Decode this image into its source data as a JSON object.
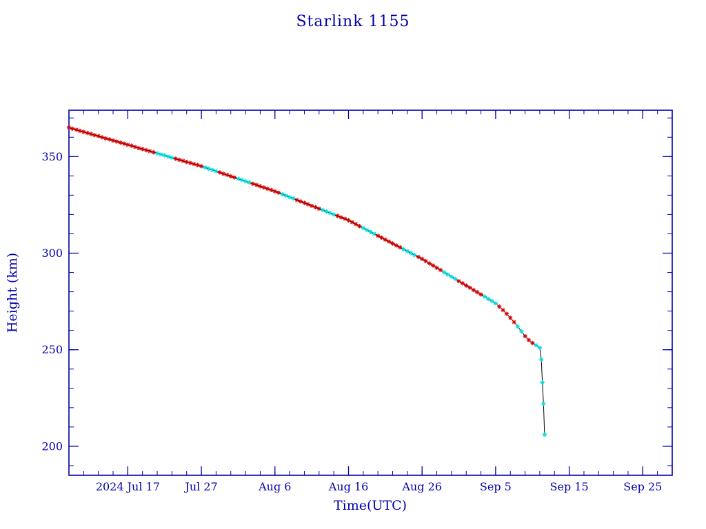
{
  "chart_data": {
    "type": "line",
    "title": "Starlink 1155",
    "xlabel": "Time(UTC)",
    "ylabel": "Height (km)",
    "x_axis": {
      "unit": "day of 2024, Jul 1 = 1",
      "range": [
        9,
        91
      ],
      "major_ticks": [
        {
          "day": 17,
          "label": "2024 Jul 17"
        },
        {
          "day": 27,
          "label": "Jul 27"
        },
        {
          "day": 37,
          "label": "Aug 6"
        },
        {
          "day": 47,
          "label": "Aug 16"
        },
        {
          "day": 57,
          "label": "Aug 26"
        },
        {
          "day": 67,
          "label": "Sep 5"
        },
        {
          "day": 77,
          "label": "Sep 15"
        },
        {
          "day": 87,
          "label": "Sep 25"
        }
      ],
      "minor_step": 2
    },
    "y_axis": {
      "unit": "km",
      "range": [
        185,
        374
      ],
      "major_ticks": [
        200,
        250,
        300,
        350
      ],
      "minor_step": 10
    },
    "grid": false,
    "legend": "none",
    "line_color": "#000000",
    "frame_color": "#0000aa",
    "marker_colors": {
      "r": "#d40000",
      "c": "#00dde0"
    },
    "points": [
      [
        9,
        365,
        "r"
      ],
      [
        9.5,
        364.4,
        "r"
      ],
      [
        10,
        363.9,
        "r"
      ],
      [
        10.5,
        363.3,
        "r"
      ],
      [
        11,
        362.8,
        "r"
      ],
      [
        11.5,
        362.2,
        "r"
      ],
      [
        12,
        361.7,
        "r"
      ],
      [
        12.5,
        361.1,
        "r"
      ],
      [
        13,
        360.6,
        "r"
      ],
      [
        13.5,
        360,
        "r"
      ],
      [
        14,
        359.4,
        "r"
      ],
      [
        14.5,
        358.9,
        "r"
      ],
      [
        15,
        358.3,
        "r"
      ],
      [
        15.5,
        357.8,
        "r"
      ],
      [
        16,
        357.2,
        "r"
      ],
      [
        16.5,
        356.7,
        "r"
      ],
      [
        17,
        356.1,
        "r"
      ],
      [
        17.5,
        355.6,
        "r"
      ],
      [
        18,
        355,
        "r"
      ],
      [
        18.5,
        354.4,
        "r"
      ],
      [
        19,
        353.9,
        "r"
      ],
      [
        19.5,
        353.3,
        "r"
      ],
      [
        20,
        352.8,
        "r"
      ],
      [
        20.5,
        352.2,
        "r"
      ],
      [
        21,
        351.7,
        "c"
      ],
      [
        21.5,
        351.1,
        "c"
      ],
      [
        22,
        350.6,
        "c"
      ],
      [
        22.5,
        350,
        "c"
      ],
      [
        23,
        349.4,
        "c"
      ],
      [
        23.5,
        348.9,
        "r"
      ],
      [
        24,
        348.3,
        "r"
      ],
      [
        24.5,
        347.8,
        "r"
      ],
      [
        25,
        347.2,
        "r"
      ],
      [
        25.5,
        346.7,
        "r"
      ],
      [
        26,
        346.1,
        "r"
      ],
      [
        26.5,
        345.6,
        "r"
      ],
      [
        27,
        345,
        "r"
      ],
      [
        27.5,
        344.4,
        "c"
      ],
      [
        28,
        343.7,
        "c"
      ],
      [
        28.5,
        343.1,
        "c"
      ],
      [
        29,
        342.4,
        "c"
      ],
      [
        29.5,
        341.8,
        "r"
      ],
      [
        30,
        341.1,
        "r"
      ],
      [
        30.5,
        340.5,
        "r"
      ],
      [
        31,
        339.8,
        "r"
      ],
      [
        31.5,
        339.2,
        "r"
      ],
      [
        32,
        338.5,
        "c"
      ],
      [
        32.5,
        337.9,
        "c"
      ],
      [
        33,
        337.2,
        "c"
      ],
      [
        33.5,
        336.6,
        "c"
      ],
      [
        34,
        335.9,
        "r"
      ],
      [
        34.5,
        335.3,
        "r"
      ],
      [
        35,
        334.6,
        "r"
      ],
      [
        35.5,
        334,
        "r"
      ],
      [
        36,
        333.3,
        "r"
      ],
      [
        36.5,
        332.7,
        "r"
      ],
      [
        37,
        332,
        "r"
      ],
      [
        37.5,
        331.3,
        "r"
      ],
      [
        38,
        330.5,
        "c"
      ],
      [
        38.5,
        329.8,
        "c"
      ],
      [
        39,
        329,
        "c"
      ],
      [
        39.5,
        328.3,
        "c"
      ],
      [
        40,
        327.5,
        "r"
      ],
      [
        40.5,
        326.8,
        "r"
      ],
      [
        41,
        326,
        "r"
      ],
      [
        41.5,
        325.3,
        "r"
      ],
      [
        42,
        324.5,
        "r"
      ],
      [
        42.5,
        323.8,
        "r"
      ],
      [
        43,
        323,
        "r"
      ],
      [
        43.5,
        322.3,
        "c"
      ],
      [
        44,
        321.5,
        "c"
      ],
      [
        44.5,
        320.8,
        "c"
      ],
      [
        45,
        320,
        "c"
      ],
      [
        45.5,
        319.3,
        "r"
      ],
      [
        46,
        318.5,
        "r"
      ],
      [
        46.5,
        317.8,
        "r"
      ],
      [
        47,
        317,
        "r"
      ],
      [
        47.5,
        316,
        "r"
      ],
      [
        48,
        315,
        "r"
      ],
      [
        48.5,
        314,
        "r"
      ],
      [
        49,
        313,
        "c"
      ],
      [
        49.5,
        312,
        "c"
      ],
      [
        50,
        311,
        "c"
      ],
      [
        50.5,
        310,
        "c"
      ],
      [
        51,
        309,
        "r"
      ],
      [
        51.5,
        308,
        "r"
      ],
      [
        52,
        307,
        "r"
      ],
      [
        52.5,
        306,
        "r"
      ],
      [
        53,
        305,
        "r"
      ],
      [
        53.5,
        304,
        "r"
      ],
      [
        54,
        303,
        "r"
      ],
      [
        54.5,
        302,
        "c"
      ],
      [
        55,
        301,
        "c"
      ],
      [
        55.5,
        300,
        "c"
      ],
      [
        56,
        299,
        "c"
      ],
      [
        56.5,
        298,
        "r"
      ],
      [
        57,
        297,
        "r"
      ],
      [
        57.5,
        295.9,
        "r"
      ],
      [
        58,
        294.7,
        "r"
      ],
      [
        58.5,
        293.6,
        "r"
      ],
      [
        59,
        292.4,
        "r"
      ],
      [
        59.5,
        291.3,
        "r"
      ],
      [
        60,
        290.1,
        "c"
      ],
      [
        60.5,
        289,
        "c"
      ],
      [
        61,
        287.8,
        "c"
      ],
      [
        61.5,
        286.7,
        "c"
      ],
      [
        62,
        285.5,
        "r"
      ],
      [
        62.5,
        284.4,
        "r"
      ],
      [
        63,
        283.2,
        "r"
      ],
      [
        63.5,
        282.1,
        "r"
      ],
      [
        64,
        280.9,
        "r"
      ],
      [
        64.5,
        279.8,
        "r"
      ],
      [
        65,
        278.6,
        "r"
      ],
      [
        65.5,
        277.5,
        "c"
      ],
      [
        66,
        276.3,
        "c"
      ],
      [
        66.5,
        275.2,
        "c"
      ],
      [
        67,
        274,
        "c"
      ],
      [
        67.5,
        272.3,
        "r"
      ],
      [
        68,
        270.5,
        "r"
      ],
      [
        68.5,
        268.6,
        "r"
      ],
      [
        69,
        266.5,
        "r"
      ],
      [
        69.5,
        264.3,
        "r"
      ],
      [
        70,
        262,
        "c"
      ],
      [
        70.5,
        259.5,
        "c"
      ],
      [
        71,
        257,
        "r"
      ],
      [
        71.5,
        255,
        "r"
      ],
      [
        72,
        253.5,
        "r"
      ],
      [
        72.5,
        252.3,
        "c"
      ],
      [
        73,
        251,
        "c"
      ],
      [
        73.2,
        245,
        "c"
      ],
      [
        73.35,
        233,
        "c"
      ],
      [
        73.5,
        222,
        "c"
      ],
      [
        73.65,
        206,
        "c"
      ]
    ]
  }
}
